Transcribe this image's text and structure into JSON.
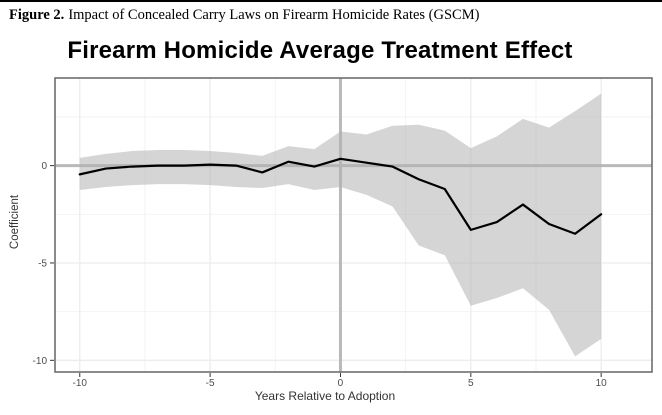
{
  "caption": {
    "label": "Figure 2.",
    "text": "Impact of Concealed Carry Laws on Firearm Homicide Rates (GSCM)"
  },
  "chart_data": {
    "type": "line",
    "title": "Firearm Homicide Average Treatment Effect",
    "xlabel": "Years Relative to Adoption",
    "ylabel": "Coefficient",
    "x": [
      -10,
      -9,
      -8,
      -7,
      -6,
      -5,
      -4,
      -3,
      -2,
      -1,
      0,
      1,
      2,
      3,
      4,
      5,
      6,
      7,
      8,
      9,
      10
    ],
    "series": [
      {
        "name": "average treatment effect coefficient",
        "values": [
          -0.45,
          -0.15,
          -0.05,
          0.0,
          0.0,
          0.05,
          0.0,
          -0.35,
          0.2,
          -0.05,
          0.35,
          0.15,
          -0.05,
          -0.7,
          -1.2,
          -3.3,
          -2.9,
          -2.0,
          -3.0,
          -3.5,
          -2.5
        ]
      }
    ],
    "band": {
      "name": "confidence interval",
      "upper": [
        0.4,
        0.6,
        0.75,
        0.8,
        0.8,
        0.75,
        0.65,
        0.5,
        1.0,
        0.85,
        1.75,
        1.6,
        2.05,
        2.1,
        1.8,
        0.9,
        1.5,
        2.4,
        1.95,
        2.8,
        3.7
      ],
      "lower": [
        -1.25,
        -1.1,
        -1.0,
        -0.95,
        -0.95,
        -1.0,
        -1.1,
        -1.15,
        -0.95,
        -1.25,
        -1.1,
        -1.5,
        -2.1,
        -4.1,
        -4.6,
        -7.2,
        -6.8,
        -6.3,
        -7.4,
        -9.8,
        -8.9
      ]
    },
    "x_ticks": [
      -10,
      -5,
      0,
      5,
      10
    ],
    "y_ticks": [
      0,
      -5,
      -10
    ],
    "x_minor": [
      -7.5,
      -2.5,
      2.5,
      7.5
    ],
    "y_minor": [
      2.5,
      -2.5,
      -7.5
    ],
    "xlim": [
      -10.95,
      11.95
    ],
    "ylim": [
      -10.6,
      4.5
    ],
    "refline_x": 0,
    "refline_y": 0,
    "grid": true,
    "legend": "none",
    "colors": {
      "line": "#000000",
      "band": "#b2b2b2",
      "band_opacity": 0.55,
      "refline": "#b9b9b9",
      "grid_major": "#ececec",
      "grid_minor": "#f2f2f2",
      "border": "#6e6e6e",
      "tick_label": "#4d4d4d",
      "axis_title": "#333333"
    }
  }
}
